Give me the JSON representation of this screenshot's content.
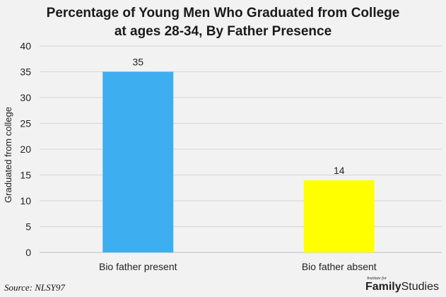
{
  "chart_data": {
    "type": "bar",
    "title": "Percentage of Young Men Who Graduated from College at ages 28-34, By Father Presence",
    "title_lines": [
      "Percentage of Young Men Who Graduated from College",
      "at ages 28-34, By Father Presence"
    ],
    "categories": [
      "Bio father present",
      "Bio father absent"
    ],
    "values": [
      35,
      14
    ],
    "data_labels": [
      "35",
      "14"
    ],
    "colors": [
      "#3daef0",
      "#ffff00"
    ],
    "xlabel": "",
    "ylabel": "Graduated from college",
    "ylim": [
      0,
      40
    ],
    "yticks": [
      0,
      5,
      10,
      15,
      20,
      25,
      30,
      35,
      40
    ],
    "grid": true,
    "legend": "none"
  },
  "footer": {
    "source": "Source: NLSY97",
    "logo_small": "Institute for",
    "logo_family": "Family",
    "logo_studies": "Studies"
  }
}
